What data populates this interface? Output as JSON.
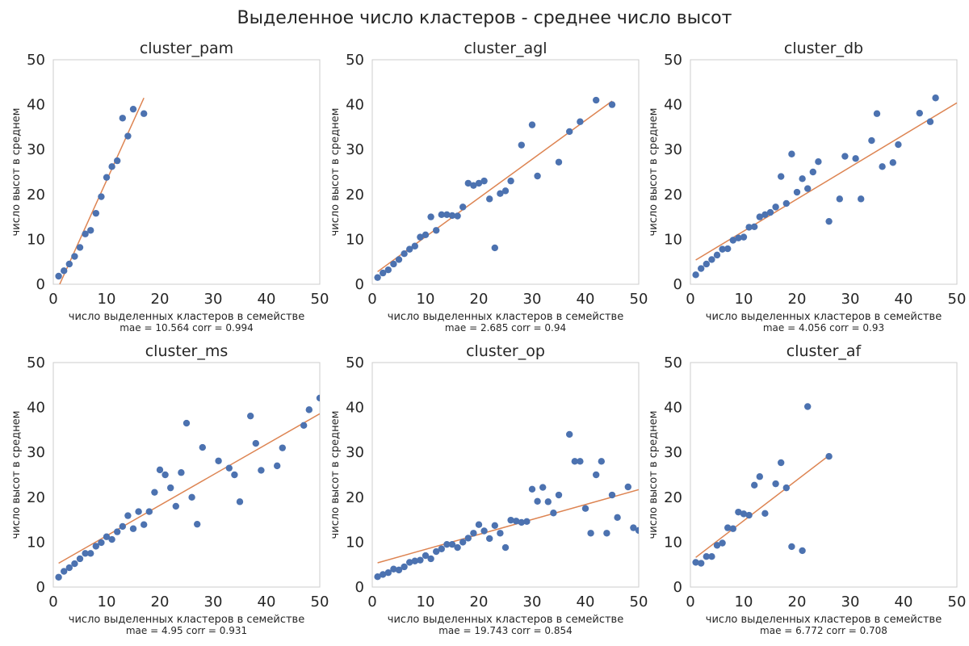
{
  "figure_title": "Выделенное число кластеров - среднее число высот",
  "colors": {
    "points": "#4c72b0",
    "line": "#dd8452",
    "frame": "#cccccc"
  },
  "chart_data": [
    {
      "type": "scatter",
      "title": "cluster_pam",
      "xlabel": "число выделенных кластеров в семействе",
      "ylabel": "число высот в среднем",
      "metrics": "mae = 10.564  corr = 0.994",
      "xlim": [
        0,
        50
      ],
      "ylim": [
        0,
        50
      ],
      "xticks": [
        "0",
        "10",
        "20",
        "30",
        "40",
        "50"
      ],
      "yticks": [
        "0",
        "10",
        "20",
        "30",
        "40",
        "50"
      ],
      "points": [
        [
          1,
          1.8
        ],
        [
          2,
          3
        ],
        [
          3,
          4.5
        ],
        [
          4,
          6.2
        ],
        [
          5,
          8.2
        ],
        [
          6,
          11.2
        ],
        [
          7,
          12
        ],
        [
          8,
          15.8
        ],
        [
          9,
          19.5
        ],
        [
          10,
          23.8
        ],
        [
          11,
          26.2
        ],
        [
          12,
          27.5
        ],
        [
          13,
          37
        ],
        [
          14,
          33
        ],
        [
          15,
          39
        ],
        [
          17,
          38
        ]
      ],
      "fit_line": [
        [
          1.2,
          0
        ],
        [
          17,
          41.5
        ]
      ]
    },
    {
      "type": "scatter",
      "title": "cluster_agl",
      "xlabel": "число выделенных кластеров в семействе",
      "ylabel": "число высот в среднем",
      "metrics": "mae = 2.685  corr = 0.94",
      "xlim": [
        0,
        50
      ],
      "ylim": [
        0,
        50
      ],
      "xticks": [
        "0",
        "10",
        "20",
        "30",
        "40",
        "50"
      ],
      "yticks": [
        "0",
        "10",
        "20",
        "30",
        "40",
        "50"
      ],
      "points": [
        [
          1,
          1.5
        ],
        [
          2,
          2.5
        ],
        [
          3,
          3.2
        ],
        [
          4,
          4.5
        ],
        [
          5,
          5.5
        ],
        [
          6,
          6.8
        ],
        [
          7,
          7.8
        ],
        [
          8,
          8.5
        ],
        [
          9,
          10.5
        ],
        [
          10,
          11
        ],
        [
          11,
          15
        ],
        [
          12,
          12
        ],
        [
          13,
          15.5
        ],
        [
          14,
          15.5
        ],
        [
          15,
          15.3
        ],
        [
          16,
          15.2
        ],
        [
          17,
          17.2
        ],
        [
          18,
          22.5
        ],
        [
          19,
          22
        ],
        [
          20,
          22.5
        ],
        [
          21,
          23
        ],
        [
          22,
          19
        ],
        [
          23,
          8.1
        ],
        [
          24,
          20.2
        ],
        [
          25,
          20.8
        ],
        [
          26,
          23
        ],
        [
          28,
          31
        ],
        [
          30,
          35.5
        ],
        [
          31,
          24.1
        ],
        [
          35,
          27.2
        ],
        [
          37,
          34
        ],
        [
          39,
          36.2
        ],
        [
          42,
          41
        ],
        [
          45,
          40
        ]
      ],
      "fit_line": [
        [
          1,
          2.8
        ],
        [
          45,
          40.8
        ]
      ]
    },
    {
      "type": "scatter",
      "title": "cluster_db",
      "xlabel": "число выделенных кластеров в семействе",
      "ylabel": "число высот в среднем",
      "metrics": "mae = 4.056  corr = 0.93",
      "xlim": [
        0,
        50
      ],
      "ylim": [
        0,
        50
      ],
      "xticks": [
        "0",
        "10",
        "20",
        "30",
        "40",
        "50"
      ],
      "yticks": [
        "0",
        "10",
        "20",
        "30",
        "40",
        "50"
      ],
      "points": [
        [
          1,
          2.1
        ],
        [
          2,
          3.5
        ],
        [
          3,
          4.5
        ],
        [
          4,
          5.5
        ],
        [
          5,
          6.5
        ],
        [
          6,
          7.8
        ],
        [
          7,
          7.9
        ],
        [
          8,
          9.8
        ],
        [
          9,
          10.3
        ],
        [
          10,
          10.5
        ],
        [
          11,
          12.7
        ],
        [
          12,
          12.8
        ],
        [
          13,
          15
        ],
        [
          14,
          15.5
        ],
        [
          15,
          16
        ],
        [
          16,
          17.2
        ],
        [
          17,
          24
        ],
        [
          18,
          18
        ],
        [
          19,
          29
        ],
        [
          20,
          20.5
        ],
        [
          21,
          23.5
        ],
        [
          22,
          21.3
        ],
        [
          23,
          25
        ],
        [
          24,
          27.3
        ],
        [
          26,
          14
        ],
        [
          28,
          19
        ],
        [
          29,
          28.5
        ],
        [
          31,
          28
        ],
        [
          32,
          19
        ],
        [
          34,
          32
        ],
        [
          35,
          38
        ],
        [
          36,
          26.2
        ],
        [
          38,
          27.1
        ],
        [
          39,
          31.1
        ],
        [
          43,
          38.1
        ],
        [
          45,
          36.2
        ],
        [
          46,
          41.5
        ]
      ],
      "fit_line": [
        [
          1,
          5.4
        ],
        [
          50,
          40.4
        ]
      ]
    },
    {
      "type": "scatter",
      "title": "cluster_ms",
      "xlabel": "число выделенных кластеров в семействе",
      "ylabel": "число высот в среднем",
      "metrics": "mae = 4.95  corr = 0.931",
      "xlim": [
        0,
        50
      ],
      "ylim": [
        0,
        50
      ],
      "xticks": [
        "0",
        "10",
        "20",
        "30",
        "40",
        "50"
      ],
      "yticks": [
        "0",
        "10",
        "20",
        "30",
        "40",
        "50"
      ],
      "points": [
        [
          1,
          2.2
        ],
        [
          2,
          3.5
        ],
        [
          3,
          4.3
        ],
        [
          4,
          5.2
        ],
        [
          5,
          6.3
        ],
        [
          6,
          7.5
        ],
        [
          7,
          7.5
        ],
        [
          8,
          9.1
        ],
        [
          9,
          9.9
        ],
        [
          10,
          11.2
        ],
        [
          11,
          10.6
        ],
        [
          12,
          12.3
        ],
        [
          13,
          13.5
        ],
        [
          14,
          15.9
        ],
        [
          15,
          13
        ],
        [
          16,
          16.8
        ],
        [
          17,
          13.9
        ],
        [
          18,
          16.8
        ],
        [
          19,
          21.1
        ],
        [
          20,
          26.1
        ],
        [
          21,
          25
        ],
        [
          22,
          22.1
        ],
        [
          23,
          18
        ],
        [
          24,
          25.5
        ],
        [
          25,
          36.5
        ],
        [
          26,
          20
        ],
        [
          27,
          14
        ],
        [
          28,
          31.1
        ],
        [
          31,
          28.1
        ],
        [
          33,
          26.5
        ],
        [
          34,
          25
        ],
        [
          35,
          19
        ],
        [
          37,
          38.1
        ],
        [
          38,
          32
        ],
        [
          39,
          26
        ],
        [
          42,
          27
        ],
        [
          43,
          31
        ],
        [
          47,
          36
        ],
        [
          48,
          39.5
        ],
        [
          50,
          42.1
        ]
      ],
      "fit_line": [
        [
          1,
          5.3
        ],
        [
          50,
          38.6
        ]
      ]
    },
    {
      "type": "scatter",
      "title": "cluster_op",
      "xlabel": "число выделенных кластеров в семействе",
      "ylabel": "число высот в среднем",
      "metrics": "mae = 19.743  corr = 0.854",
      "xlim": [
        0,
        50
      ],
      "ylim": [
        0,
        50
      ],
      "xticks": [
        "0",
        "10",
        "20",
        "30",
        "40",
        "50"
      ],
      "yticks": [
        "0",
        "10",
        "20",
        "30",
        "40",
        "50"
      ],
      "points": [
        [
          1,
          2.3
        ],
        [
          2,
          2.8
        ],
        [
          3,
          3.2
        ],
        [
          4,
          4
        ],
        [
          5,
          3.8
        ],
        [
          6,
          4.5
        ],
        [
          7,
          5.5
        ],
        [
          8,
          5.8
        ],
        [
          9,
          6
        ],
        [
          10,
          7
        ],
        [
          11,
          6.3
        ],
        [
          12,
          7.9
        ],
        [
          13,
          8.5
        ],
        [
          14,
          9.5
        ],
        [
          15,
          9.5
        ],
        [
          16,
          8.8
        ],
        [
          17,
          10
        ],
        [
          18,
          10.9
        ],
        [
          19,
          12
        ],
        [
          20,
          13.9
        ],
        [
          21,
          12.5
        ],
        [
          22,
          10.8
        ],
        [
          23,
          13.7
        ],
        [
          24,
          12
        ],
        [
          25,
          8.8
        ],
        [
          26,
          14.9
        ],
        [
          27,
          14.7
        ],
        [
          28,
          14.4
        ],
        [
          29,
          14.6
        ],
        [
          30,
          21.8
        ],
        [
          31,
          19.1
        ],
        [
          32,
          22.2
        ],
        [
          33,
          19
        ],
        [
          34,
          16.5
        ],
        [
          35,
          20.5
        ],
        [
          37,
          34
        ],
        [
          38,
          28
        ],
        [
          39,
          28
        ],
        [
          40,
          17.5
        ],
        [
          41,
          12
        ],
        [
          42,
          25
        ],
        [
          43,
          28
        ],
        [
          44,
          12
        ],
        [
          45,
          20.5
        ],
        [
          46,
          15.5
        ],
        [
          48,
          22.3
        ],
        [
          49,
          13.2
        ],
        [
          50,
          12.6
        ]
      ],
      "fit_line": [
        [
          1,
          5.4
        ],
        [
          50,
          21.7
        ]
      ]
    },
    {
      "type": "scatter",
      "title": "cluster_af",
      "xlabel": "число выделенных кластеров в семействе",
      "ylabel": "число высот в среднем",
      "metrics": "mae = 6.772  corr = 0.708",
      "xlim": [
        0,
        50
      ],
      "ylim": [
        0,
        50
      ],
      "xticks": [
        "0",
        "10",
        "20",
        "30",
        "40",
        "50"
      ],
      "yticks": [
        "0",
        "10",
        "20",
        "30",
        "40",
        "50"
      ],
      "points": [
        [
          1,
          5.5
        ],
        [
          2,
          5.3
        ],
        [
          3,
          6.8
        ],
        [
          4,
          6.8
        ],
        [
          5,
          9.3
        ],
        [
          6,
          9.8
        ],
        [
          7,
          13.2
        ],
        [
          8,
          13
        ],
        [
          9,
          16.7
        ],
        [
          10,
          16.3
        ],
        [
          11,
          16
        ],
        [
          12,
          22.7
        ],
        [
          13,
          24.6
        ],
        [
          14,
          16.4
        ],
        [
          16,
          23
        ],
        [
          17,
          27.7
        ],
        [
          18,
          22.1
        ],
        [
          19,
          9
        ],
        [
          21,
          8.1
        ],
        [
          22,
          40.2
        ],
        [
          26,
          29.1
        ]
      ],
      "fit_line": [
        [
          1,
          6.6
        ],
        [
          26,
          29.3
        ]
      ]
    }
  ]
}
